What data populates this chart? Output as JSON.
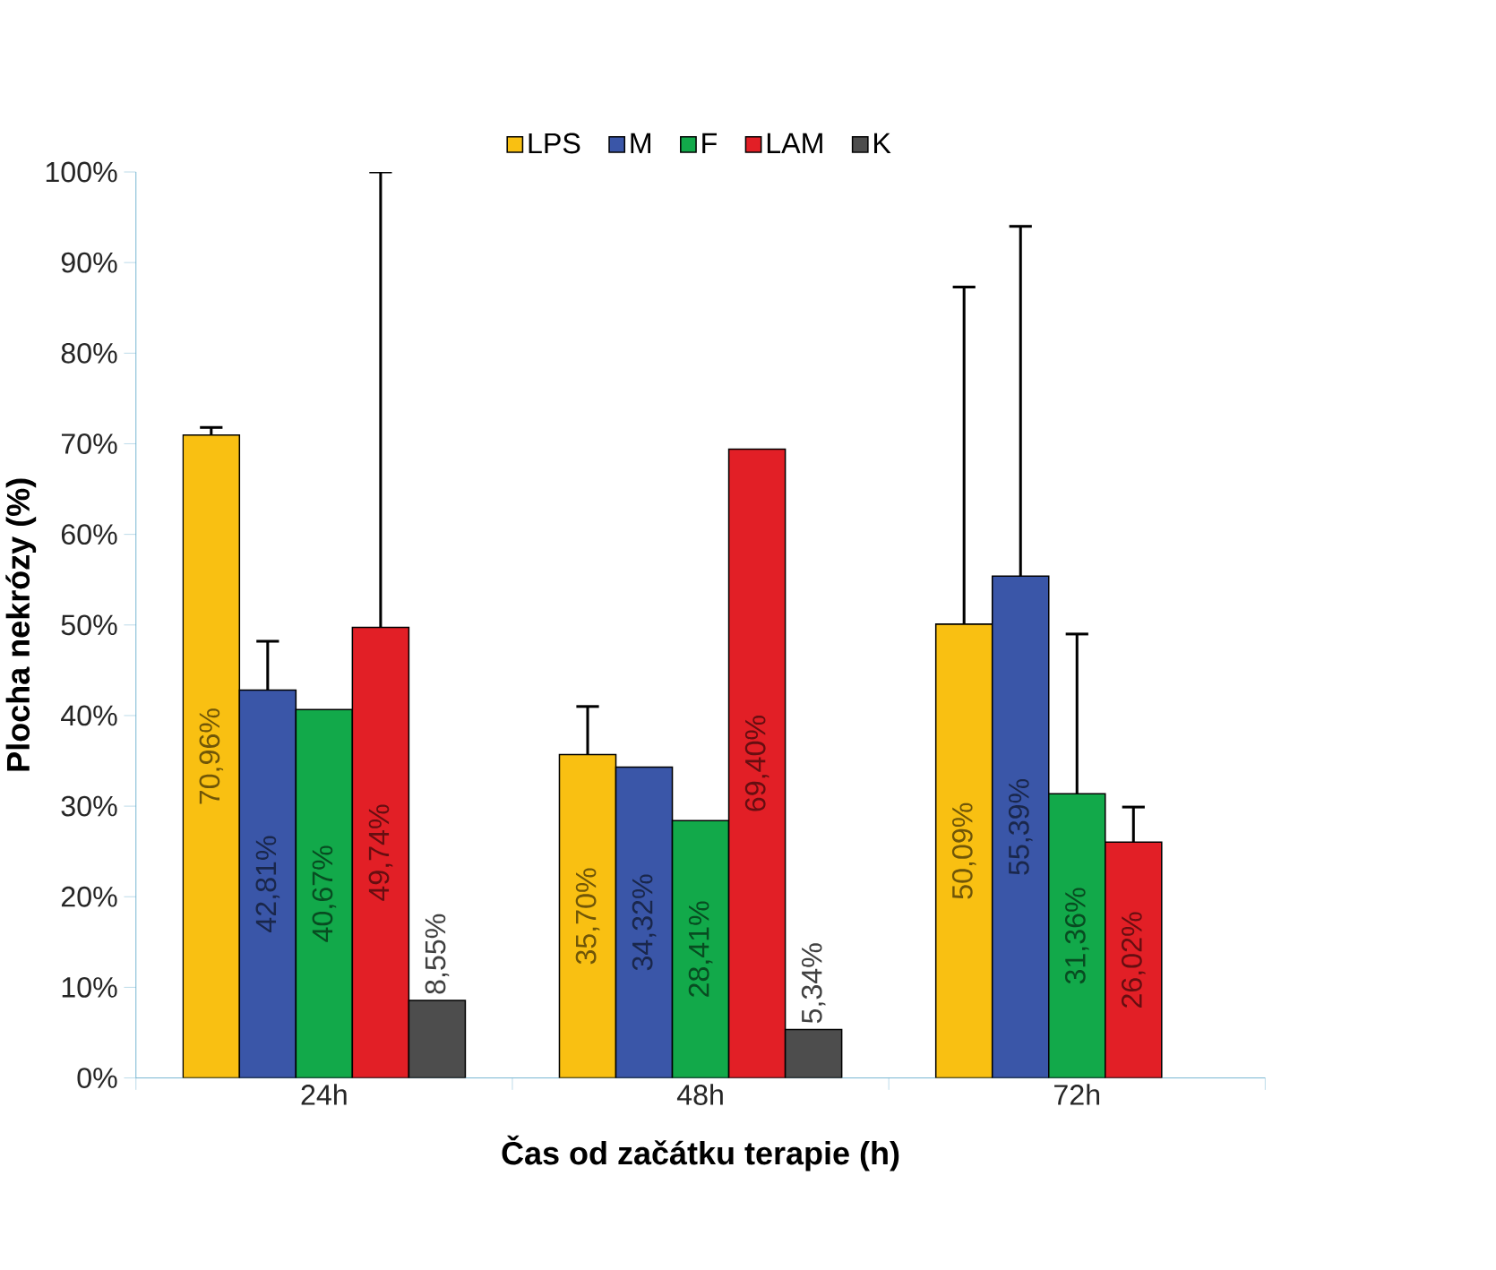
{
  "chart_data": {
    "type": "bar",
    "categories": [
      "24h",
      "48h",
      "72h"
    ],
    "xlabel": "Čas od začátku terapie (h)",
    "ylabel": "Plocha nekrózy (%)",
    "ylim": [
      0,
      100
    ],
    "yticks": [
      {
        "value": 0,
        "label": "0%"
      },
      {
        "value": 10,
        "label": "10%"
      },
      {
        "value": 20,
        "label": "20%"
      },
      {
        "value": 30,
        "label": "30%"
      },
      {
        "value": 40,
        "label": "40%"
      },
      {
        "value": 50,
        "label": "50%"
      },
      {
        "value": 60,
        "label": "60%"
      },
      {
        "value": 70,
        "label": "70%"
      },
      {
        "value": 80,
        "label": "80%"
      },
      {
        "value": 90,
        "label": "90%"
      },
      {
        "value": 100,
        "label": "100%"
      }
    ],
    "legend": "top",
    "grid": false,
    "series": [
      {
        "name": "LPS",
        "color": "#f9c012",
        "values": [
          70.96,
          35.7,
          50.09
        ],
        "value_labels": [
          "70,96%",
          "35,70%",
          "50,09%"
        ],
        "errors": [
          [
            70.96,
            71.8
          ],
          [
            35.7,
            41.0
          ],
          [
            50.09,
            87.3
          ]
        ]
      },
      {
        "name": "M",
        "color": "#3a56a8",
        "values": [
          42.81,
          34.32,
          55.39
        ],
        "value_labels": [
          "42,81%",
          "34,32%",
          "55,39%"
        ],
        "errors": [
          [
            42.81,
            48.2
          ],
          null,
          [
            55.39,
            94.0
          ]
        ]
      },
      {
        "name": "F",
        "color": "#12a94a",
        "values": [
          40.67,
          28.41,
          31.36
        ],
        "value_labels": [
          "40,67%",
          "28,41%",
          "31,36%"
        ],
        "errors": [
          null,
          null,
          [
            31.36,
            49.0
          ]
        ]
      },
      {
        "name": "LAM",
        "color": "#e21f26",
        "values": [
          49.74,
          69.4,
          26.02
        ],
        "value_labels": [
          "49,74%",
          "69,40%",
          "26,02%"
        ],
        "errors": [
          [
            49.74,
            100
          ],
          null,
          [
            26.02,
            29.9
          ]
        ]
      },
      {
        "name": "K",
        "color": "#4d4d4d",
        "values": [
          8.55,
          5.34,
          null
        ],
        "value_labels": [
          "8,55%",
          "5,34%",
          null
        ]
      }
    ]
  }
}
